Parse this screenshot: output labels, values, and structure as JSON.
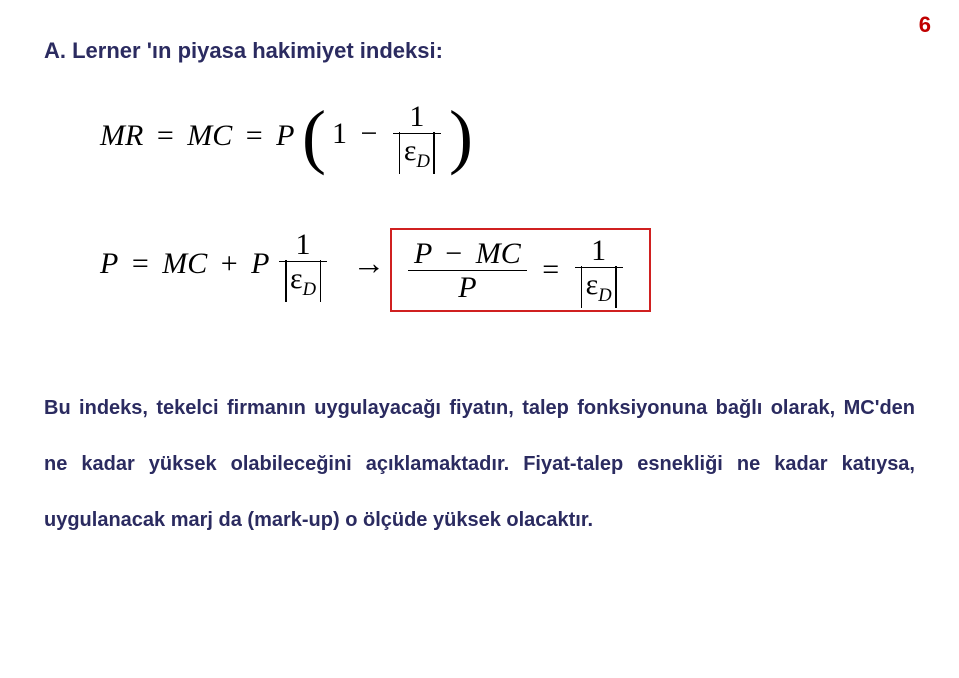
{
  "page_number": "6",
  "title": "A. Lerner 'ın piyasa hakimiyet indeksi:",
  "eq1": {
    "lhs1": "MR",
    "eq": "=",
    "lhs2": "MC",
    "rhs_P": "P",
    "one_a": "1",
    "minus": "−",
    "frac_num": "1",
    "eps": "ε",
    "sub": "D"
  },
  "eq2": {
    "P": "P",
    "eq": "=",
    "MC": "MC",
    "plus": "+",
    "P2": "P",
    "frac_num": "1",
    "eps": "ε",
    "sub": "D",
    "arrow": "→"
  },
  "eq3": {
    "num_P": "P",
    "minus": "−",
    "num_MC": "MC",
    "den_P": "P",
    "eq": "=",
    "frac_num": "1",
    "eps": "ε",
    "sub": "D"
  },
  "paragraph": "Bu indeks, tekelci firmanın uygulayacağı fiyatın, talep fonksiyonuna bağlı olarak, MC'den ne kadar yüksek olabileceğini açıklamaktadır. Fiyat-talep esnekliği ne kadar katıysa, uygulanacak marj da (mark-up) o ölçüde yüksek olacaktır.",
  "colors": {
    "title": "#2b2b60",
    "page_number": "#c00000",
    "box_border": "#d02020",
    "text": "#2b2b60",
    "math": "#000000",
    "background": "#ffffff"
  }
}
